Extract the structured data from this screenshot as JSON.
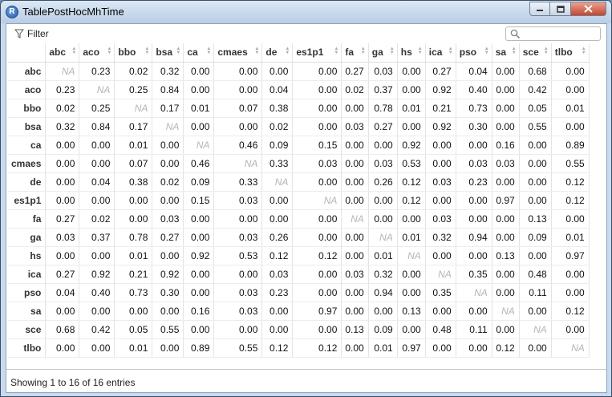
{
  "window": {
    "title": "TablePostHocMhTime",
    "app_icon": "R",
    "min_icon": "minimize-icon",
    "max_icon": "maximize-icon",
    "close_icon": "close-icon"
  },
  "toolbar": {
    "filter_label": "Filter",
    "search_placeholder": "",
    "search_value": ""
  },
  "table": {
    "columns": [
      "",
      "abc",
      "aco",
      "bbo",
      "bsa",
      "ca",
      "cmaes",
      "de",
      "es1p1",
      "fa",
      "ga",
      "hs",
      "ica",
      "pso",
      "sa",
      "sce",
      "tlbo"
    ],
    "rows": [
      [
        "abc",
        "NA",
        "0.23",
        "0.02",
        "0.32",
        "0.00",
        "0.00",
        "0.00",
        "0.00",
        "0.27",
        "0.03",
        "0.00",
        "0.27",
        "0.04",
        "0.00",
        "0.68",
        "0.00"
      ],
      [
        "aco",
        "0.23",
        "NA",
        "0.25",
        "0.84",
        "0.00",
        "0.00",
        "0.04",
        "0.00",
        "0.02",
        "0.37",
        "0.00",
        "0.92",
        "0.40",
        "0.00",
        "0.42",
        "0.00"
      ],
      [
        "bbo",
        "0.02",
        "0.25",
        "NA",
        "0.17",
        "0.01",
        "0.07",
        "0.38",
        "0.00",
        "0.00",
        "0.78",
        "0.01",
        "0.21",
        "0.73",
        "0.00",
        "0.05",
        "0.01"
      ],
      [
        "bsa",
        "0.32",
        "0.84",
        "0.17",
        "NA",
        "0.00",
        "0.00",
        "0.02",
        "0.00",
        "0.03",
        "0.27",
        "0.00",
        "0.92",
        "0.30",
        "0.00",
        "0.55",
        "0.00"
      ],
      [
        "ca",
        "0.00",
        "0.00",
        "0.01",
        "0.00",
        "NA",
        "0.46",
        "0.09",
        "0.15",
        "0.00",
        "0.00",
        "0.92",
        "0.00",
        "0.00",
        "0.16",
        "0.00",
        "0.89"
      ],
      [
        "cmaes",
        "0.00",
        "0.00",
        "0.07",
        "0.00",
        "0.46",
        "NA",
        "0.33",
        "0.03",
        "0.00",
        "0.03",
        "0.53",
        "0.00",
        "0.03",
        "0.03",
        "0.00",
        "0.55"
      ],
      [
        "de",
        "0.00",
        "0.04",
        "0.38",
        "0.02",
        "0.09",
        "0.33",
        "NA",
        "0.00",
        "0.00",
        "0.26",
        "0.12",
        "0.03",
        "0.23",
        "0.00",
        "0.00",
        "0.12"
      ],
      [
        "es1p1",
        "0.00",
        "0.00",
        "0.00",
        "0.00",
        "0.15",
        "0.03",
        "0.00",
        "NA",
        "0.00",
        "0.00",
        "0.12",
        "0.00",
        "0.00",
        "0.97",
        "0.00",
        "0.12"
      ],
      [
        "fa",
        "0.27",
        "0.02",
        "0.00",
        "0.03",
        "0.00",
        "0.00",
        "0.00",
        "0.00",
        "NA",
        "0.00",
        "0.00",
        "0.03",
        "0.00",
        "0.00",
        "0.13",
        "0.00"
      ],
      [
        "ga",
        "0.03",
        "0.37",
        "0.78",
        "0.27",
        "0.00",
        "0.03",
        "0.26",
        "0.00",
        "0.00",
        "NA",
        "0.01",
        "0.32",
        "0.94",
        "0.00",
        "0.09",
        "0.01"
      ],
      [
        "hs",
        "0.00",
        "0.00",
        "0.01",
        "0.00",
        "0.92",
        "0.53",
        "0.12",
        "0.12",
        "0.00",
        "0.01",
        "NA",
        "0.00",
        "0.00",
        "0.13",
        "0.00",
        "0.97"
      ],
      [
        "ica",
        "0.27",
        "0.92",
        "0.21",
        "0.92",
        "0.00",
        "0.00",
        "0.03",
        "0.00",
        "0.03",
        "0.32",
        "0.00",
        "NA",
        "0.35",
        "0.00",
        "0.48",
        "0.00"
      ],
      [
        "pso",
        "0.04",
        "0.40",
        "0.73",
        "0.30",
        "0.00",
        "0.03",
        "0.23",
        "0.00",
        "0.00",
        "0.94",
        "0.00",
        "0.35",
        "NA",
        "0.00",
        "0.11",
        "0.00"
      ],
      [
        "sa",
        "0.00",
        "0.00",
        "0.00",
        "0.00",
        "0.16",
        "0.03",
        "0.00",
        "0.97",
        "0.00",
        "0.00",
        "0.13",
        "0.00",
        "0.00",
        "NA",
        "0.00",
        "0.12"
      ],
      [
        "sce",
        "0.68",
        "0.42",
        "0.05",
        "0.55",
        "0.00",
        "0.00",
        "0.00",
        "0.00",
        "0.13",
        "0.09",
        "0.00",
        "0.48",
        "0.11",
        "0.00",
        "NA",
        "0.00"
      ],
      [
        "tlbo",
        "0.00",
        "0.00",
        "0.01",
        "0.00",
        "0.89",
        "0.55",
        "0.12",
        "0.12",
        "0.00",
        "0.01",
        "0.97",
        "0.00",
        "0.00",
        "0.12",
        "0.00",
        "NA"
      ]
    ]
  },
  "footer": {
    "info": "Showing 1 to 16 of 16 entries"
  }
}
